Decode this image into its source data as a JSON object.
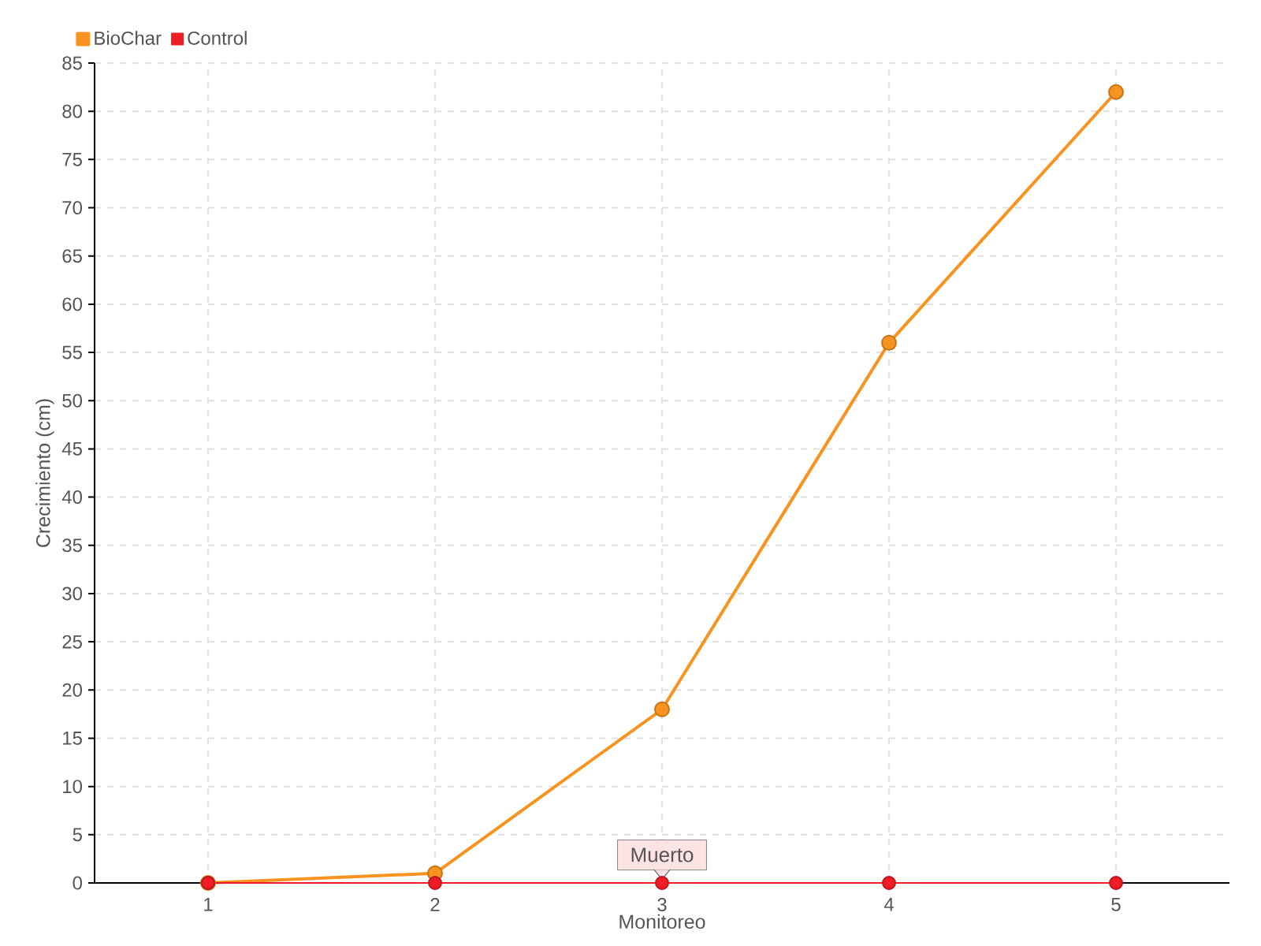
{
  "chart_data": {
    "type": "line",
    "xlabel": "Monitoreo",
    "ylabel": "Crecimiento (cm)",
    "x": [
      1,
      2,
      3,
      4,
      5
    ],
    "xlim": [
      0.5,
      5.5
    ],
    "xticks": [
      1,
      2,
      3,
      4,
      5
    ],
    "ylim": [
      0,
      85
    ],
    "yticks": [
      0,
      5,
      10,
      15,
      20,
      25,
      30,
      35,
      40,
      45,
      50,
      55,
      60,
      65,
      70,
      75,
      80,
      85
    ],
    "series": [
      {
        "name": "BioChar",
        "color": "#f7931e",
        "values": [
          0,
          1,
          18,
          56,
          82
        ]
      },
      {
        "name": "Control",
        "color": "#ee1c25",
        "values": [
          0,
          0,
          0,
          0,
          0
        ]
      }
    ],
    "annotations": [
      {
        "text": "Muerto",
        "x": 3,
        "y": 0
      }
    ],
    "grid": true,
    "legend": "top left",
    "marker": "circle",
    "line_style": "solid"
  }
}
